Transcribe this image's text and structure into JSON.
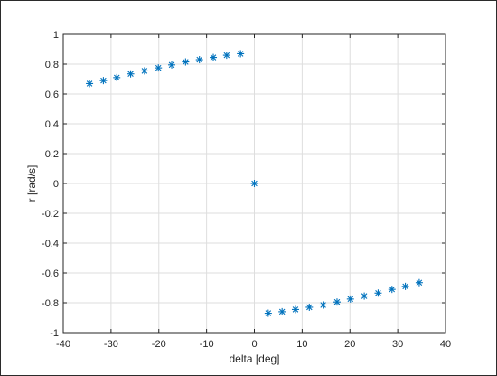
{
  "chart_data": {
    "type": "scatter",
    "xlabel": "delta [deg]",
    "ylabel": "r [rad/s]",
    "xlim": [
      -40,
      40
    ],
    "ylim": [
      -1,
      1
    ],
    "xticks": [
      -40,
      -30,
      -20,
      -10,
      0,
      10,
      20,
      30,
      40
    ],
    "yticks": [
      -1,
      -0.8,
      -0.6,
      -0.4,
      -0.2,
      0,
      0.2,
      0.4,
      0.6,
      0.8,
      1
    ],
    "xtick_labels": [
      "-40",
      "-30",
      "-20",
      "-10",
      "0",
      "10",
      "20",
      "30",
      "40"
    ],
    "ytick_labels": [
      "-1",
      "-0.8",
      "-0.6",
      "-0.4",
      "-0.2",
      "0",
      "0.2",
      "0.4",
      "0.6",
      "0.8",
      "1"
    ],
    "grid": true,
    "marker": "asterisk",
    "marker_color": "#0072bd",
    "points": [
      {
        "x": -34.5,
        "y": 0.67
      },
      {
        "x": -31.6,
        "y": 0.69
      },
      {
        "x": -28.8,
        "y": 0.71
      },
      {
        "x": -25.9,
        "y": 0.735
      },
      {
        "x": -23.0,
        "y": 0.755
      },
      {
        "x": -20.1,
        "y": 0.775
      },
      {
        "x": -17.3,
        "y": 0.795
      },
      {
        "x": -14.4,
        "y": 0.815
      },
      {
        "x": -11.5,
        "y": 0.83
      },
      {
        "x": -8.6,
        "y": 0.845
      },
      {
        "x": -5.8,
        "y": 0.86
      },
      {
        "x": -2.9,
        "y": 0.87
      },
      {
        "x": 0,
        "y": 0
      },
      {
        "x": 2.9,
        "y": -0.87
      },
      {
        "x": 5.8,
        "y": -0.86
      },
      {
        "x": 8.6,
        "y": -0.845
      },
      {
        "x": 11.5,
        "y": -0.83
      },
      {
        "x": 14.4,
        "y": -0.815
      },
      {
        "x": 17.3,
        "y": -0.795
      },
      {
        "x": 20.1,
        "y": -0.775
      },
      {
        "x": 23.0,
        "y": -0.755
      },
      {
        "x": 25.9,
        "y": -0.735
      },
      {
        "x": 28.8,
        "y": -0.71
      },
      {
        "x": 31.6,
        "y": -0.69
      },
      {
        "x": 34.5,
        "y": -0.665
      }
    ]
  }
}
